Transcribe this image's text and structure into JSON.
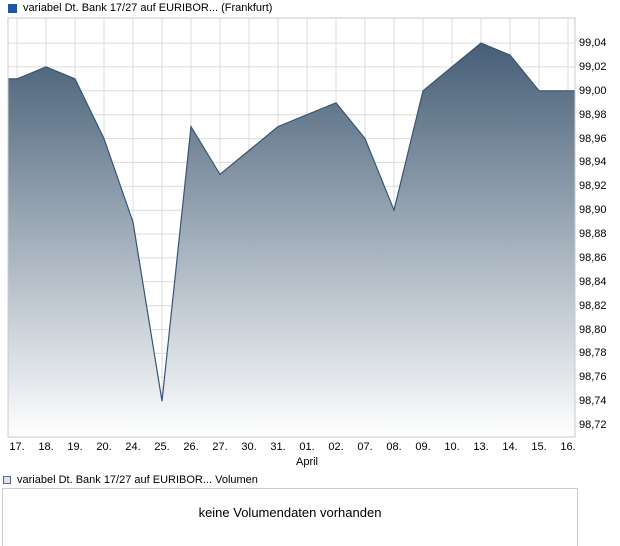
{
  "price_panel": {
    "legend_label": "variabel Dt. Bank 17/27 auf EURIBOR... (Frankfurt)",
    "legend_color": "#2353a5"
  },
  "volume_panel": {
    "legend_label": "variabel Dt. Bank 17/27 auf EURIBOR... Volumen",
    "swatch_border": "#5a6b85",
    "swatch_fill": "#dfe4ec",
    "message": "keine Volumendaten vorhanden"
  },
  "chart_data": {
    "type": "area",
    "title": "variabel Dt. Bank 17/27 auf EURIBOR... (Frankfurt)",
    "categories": [
      "17.",
      "18.",
      "19.",
      "20.",
      "24.",
      "25.",
      "26.",
      "27.",
      "30.",
      "31.",
      "01.",
      "02.",
      "07.",
      "08.",
      "09.",
      "10.",
      "13.",
      "14.",
      "15.",
      "16."
    ],
    "values": [
      99.01,
      99.02,
      99.01,
      98.96,
      98.89,
      98.74,
      98.97,
      98.93,
      98.95,
      98.97,
      98.98,
      98.99,
      98.96,
      98.9,
      99.0,
      99.02,
      99.04,
      99.03,
      99.0,
      99.0
    ],
    "month_label": "April",
    "month_tick_index": 10,
    "xlabel": "",
    "ylabel": "",
    "ylim": [
      98.71,
      99.061
    ],
    "y_ticks": [
      98.72,
      98.74,
      98.76,
      98.78,
      98.8,
      98.82,
      98.84,
      98.86,
      98.88,
      98.9,
      98.92,
      98.94,
      98.96,
      98.98,
      99.0,
      99.02,
      99.04
    ],
    "y_axis_side": "right",
    "decimal_separator": ",",
    "grid": true,
    "legend_position": "top-left",
    "line_color": "#375577",
    "area_top": "#3a546e",
    "area_bottom": "#ffffff",
    "grid_color": "#dcdcdc",
    "border_color": "#c9c9c9"
  }
}
